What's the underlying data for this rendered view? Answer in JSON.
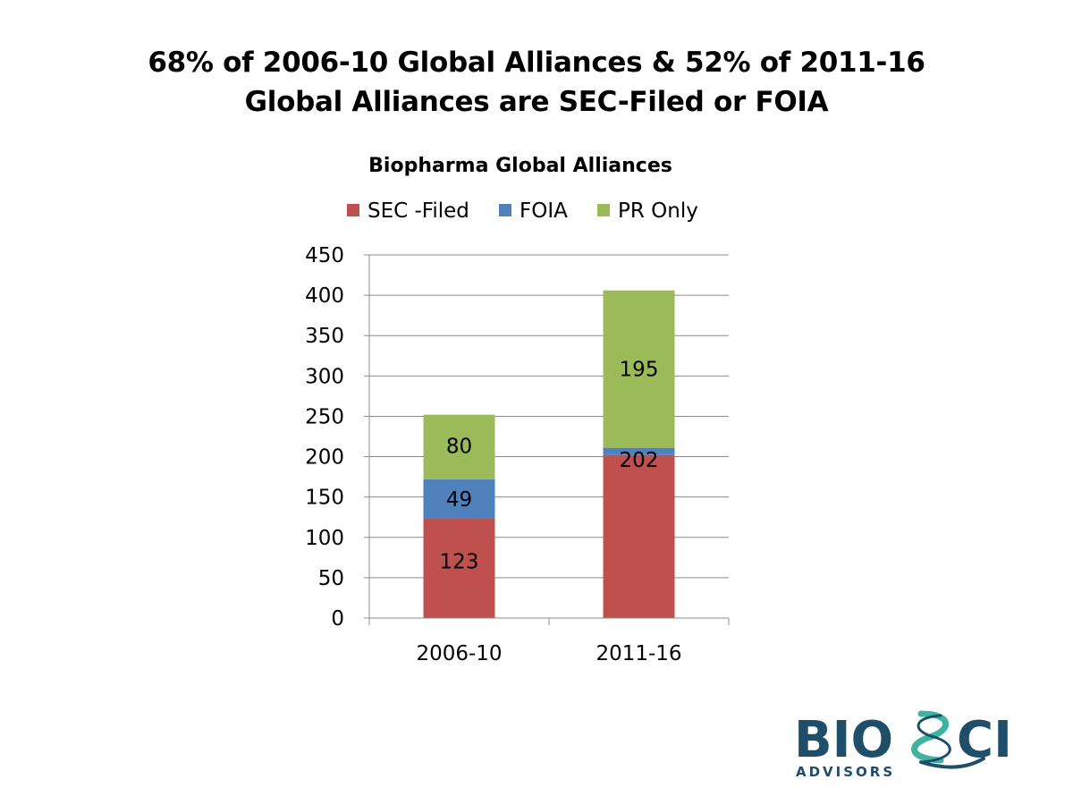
{
  "slide": {
    "title_line1": "68% of 2006-10 Global Alliances & 52% of 2011-16",
    "title_line2": "Global Alliances are SEC-Filed or FOIA"
  },
  "chart_data": {
    "type": "bar",
    "stacked": true,
    "title": "Biopharma Global Alliances",
    "categories": [
      "2006-10",
      "2011-16"
    ],
    "series": [
      {
        "name": "SEC -Filed",
        "color": "#C0504D",
        "values": [
          123,
          202
        ],
        "labels": [
          "123",
          "202"
        ]
      },
      {
        "name": "FOIA",
        "color": "#4F81BD",
        "values": [
          49,
          9
        ],
        "labels": [
          "49",
          ""
        ]
      },
      {
        "name": "PR Only",
        "color": "#9BBB59",
        "values": [
          80,
          195
        ],
        "labels": [
          "80",
          "195"
        ]
      }
    ],
    "ylim": [
      0,
      450
    ],
    "yticks": [
      0,
      50,
      100,
      150,
      200,
      250,
      300,
      350,
      400,
      450
    ],
    "grid": true,
    "legend": "top",
    "xlabel": "",
    "ylabel": ""
  },
  "logo": {
    "text_main_left": "BIO",
    "text_main_right": "CI",
    "text_sub": "ADVISORS",
    "color_primary": "#1F4E6B",
    "color_accent": "#3FB3A0"
  }
}
